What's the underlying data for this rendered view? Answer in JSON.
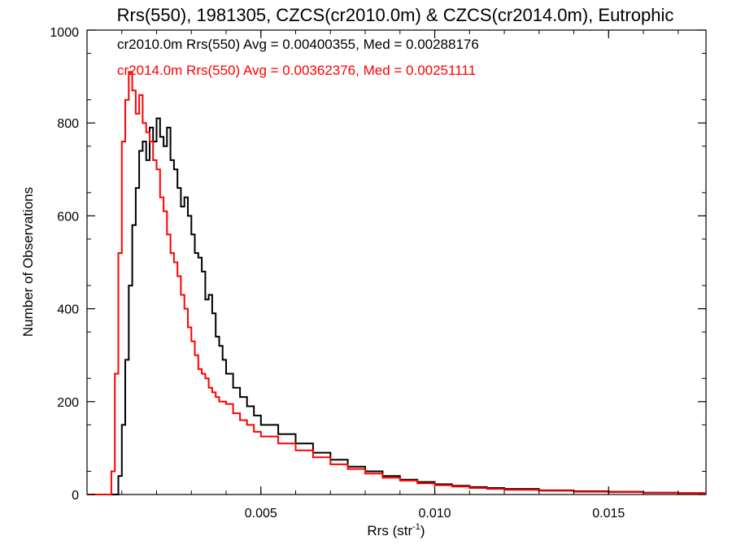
{
  "chart_data": {
    "type": "line",
    "title": "Rrs(550), 1981305, CZCS(cr2010.0m) & CZCS(cr2014.0m), Eutrophic",
    "xlabel": "Rrs (str",
    "xlabel_superscript": "-1",
    "xlabel_suffix": ")",
    "ylabel": "Number of Observations",
    "xlim": [
      0.0,
      0.0178
    ],
    "ylim": [
      0,
      1000
    ],
    "x_ticks": [
      0.005,
      0.01,
      0.015
    ],
    "x_tick_labels": [
      "0.005",
      "0.010",
      "0.015"
    ],
    "y_ticks": [
      0,
      200,
      400,
      600,
      800,
      1000
    ],
    "y_tick_labels": [
      "0",
      "200",
      "400",
      "600",
      "800",
      "1000"
    ],
    "grid": false,
    "legend_placement": "top-left",
    "annotations": [
      {
        "text": "cr2010.0m Rrs(550) Avg = 0.00400355, Med = 0.00288176",
        "color": "#000000"
      },
      {
        "text": "cr2014.0m Rrs(550) Avg = 0.00362376, Med = 0.00251111",
        "color": "#ff0000"
      }
    ],
    "series": [
      {
        "color": "#000000",
        "x": [
          0.0,
          0.0007,
          0.0008,
          0.0009,
          0.001,
          0.0011,
          0.0012,
          0.0013,
          0.0014,
          0.0015,
          0.0016,
          0.0017,
          0.0018,
          0.0019,
          0.002,
          0.0021,
          0.0022,
          0.0023,
          0.0024,
          0.0025,
          0.0026,
          0.0027,
          0.0028,
          0.0029,
          0.003,
          0.0031,
          0.0032,
          0.0033,
          0.0034,
          0.0035,
          0.0036,
          0.0037,
          0.0038,
          0.0039,
          0.004,
          0.0042,
          0.0044,
          0.0046,
          0.0048,
          0.005,
          0.0055,
          0.006,
          0.0065,
          0.007,
          0.0075,
          0.008,
          0.0085,
          0.009,
          0.0095,
          0.01,
          0.0105,
          0.011,
          0.0115,
          0.012,
          0.013,
          0.014,
          0.015,
          0.016,
          0.017,
          0.0178
        ],
        "y": [
          0,
          0,
          0,
          40,
          150,
          290,
          450,
          580,
          660,
          740,
          760,
          720,
          790,
          760,
          810,
          770,
          750,
          790,
          720,
          700,
          660,
          620,
          640,
          600,
          560,
          520,
          510,
          480,
          420,
          430,
          390,
          340,
          320,
          290,
          260,
          230,
          210,
          190,
          170,
          150,
          130,
          110,
          90,
          75,
          60,
          50,
          40,
          32,
          27,
          22,
          19,
          16,
          14,
          12,
          9,
          7,
          6,
          4,
          3,
          3
        ]
      },
      {
        "color": "#ff0000",
        "x": [
          0.0,
          0.0006,
          0.0007,
          0.0008,
          0.0009,
          0.001,
          0.0011,
          0.0012,
          0.0013,
          0.0014,
          0.0015,
          0.0016,
          0.0017,
          0.0018,
          0.0019,
          0.002,
          0.0021,
          0.0022,
          0.0023,
          0.0024,
          0.0025,
          0.0026,
          0.0027,
          0.0028,
          0.0029,
          0.003,
          0.0031,
          0.0032,
          0.0033,
          0.0034,
          0.0035,
          0.0036,
          0.0037,
          0.0038,
          0.004,
          0.0042,
          0.0044,
          0.0046,
          0.0048,
          0.005,
          0.0055,
          0.006,
          0.0065,
          0.007,
          0.0075,
          0.008,
          0.0085,
          0.009,
          0.0095,
          0.01,
          0.0105,
          0.011,
          0.0115,
          0.012,
          0.013,
          0.014,
          0.015,
          0.016,
          0.017,
          0.0178
        ],
        "y": [
          0,
          0,
          50,
          260,
          520,
          760,
          850,
          910,
          870,
          820,
          860,
          800,
          780,
          760,
          720,
          700,
          640,
          610,
          560,
          520,
          500,
          470,
          430,
          400,
          360,
          330,
          300,
          270,
          260,
          250,
          230,
          220,
          210,
          200,
          195,
          175,
          160,
          150,
          135,
          125,
          110,
          95,
          80,
          65,
          55,
          45,
          36,
          30,
          24,
          20,
          17,
          14,
          12,
          10,
          8,
          6,
          5,
          4,
          3,
          3
        ]
      }
    ]
  }
}
